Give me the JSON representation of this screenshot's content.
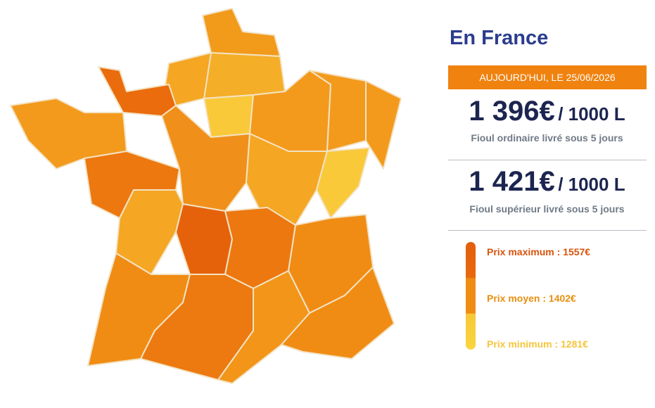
{
  "title": "En France",
  "date_banner": "AUJOURD'HUI, LE 25/06/2026",
  "prices": [
    {
      "amount": "1 396€",
      "unit": "/ 1000 L",
      "description": "Fioul ordinaire livré sous 5 jours"
    },
    {
      "amount": "1 421€",
      "unit": "/ 1000 L",
      "description": "Fioul supérieur livré sous 5 jours"
    }
  ],
  "legend": [
    "Prix maximum : 1557€",
    "Prix moyen : 1402€",
    "Prix minimum : 1281€"
  ]
}
